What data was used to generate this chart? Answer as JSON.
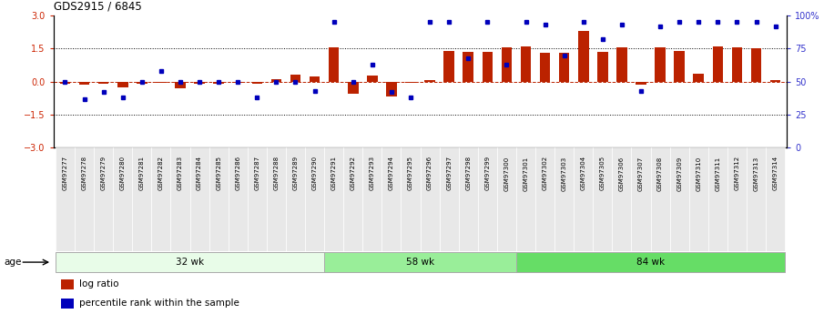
{
  "title": "GDS2915 / 6845",
  "samples": [
    "GSM97277",
    "GSM97278",
    "GSM97279",
    "GSM97280",
    "GSM97281",
    "GSM97282",
    "GSM97283",
    "GSM97284",
    "GSM97285",
    "GSM97286",
    "GSM97287",
    "GSM97288",
    "GSM97289",
    "GSM97290",
    "GSM97291",
    "GSM97292",
    "GSM97293",
    "GSM97294",
    "GSM97295",
    "GSM97296",
    "GSM97297",
    "GSM97298",
    "GSM97299",
    "GSM97300",
    "GSM97301",
    "GSM97302",
    "GSM97303",
    "GSM97304",
    "GSM97305",
    "GSM97306",
    "GSM97307",
    "GSM97308",
    "GSM97309",
    "GSM97310",
    "GSM97311",
    "GSM97312",
    "GSM97313",
    "GSM97314"
  ],
  "log_ratio": [
    -0.1,
    -0.12,
    -0.08,
    -0.25,
    -0.1,
    -0.05,
    -0.3,
    -0.1,
    -0.08,
    -0.05,
    -0.08,
    0.1,
    0.3,
    0.25,
    1.55,
    -0.55,
    0.28,
    -0.68,
    -0.05,
    0.05,
    1.4,
    1.35,
    1.35,
    1.55,
    1.6,
    1.3,
    1.3,
    2.3,
    1.35,
    1.55,
    -0.12,
    1.55,
    1.4,
    0.35,
    1.6,
    1.55,
    1.5,
    0.05
  ],
  "percentile": [
    50,
    37,
    42,
    38,
    50,
    58,
    50,
    50,
    50,
    50,
    38,
    50,
    50,
    43,
    95,
    50,
    63,
    42,
    38,
    95,
    95,
    68,
    95,
    63,
    95,
    93,
    70,
    95,
    82,
    93,
    43,
    92,
    95,
    95,
    95,
    95,
    95,
    92
  ],
  "group_labels": [
    "32 wk",
    "58 wk",
    "84 wk"
  ],
  "group_ends": [
    14,
    24,
    38
  ],
  "group_starts": [
    0,
    14,
    24
  ],
  "group_colors": [
    "#e8fce8",
    "#99ee99",
    "#66dd66"
  ],
  "bar_color": "#bb2200",
  "dot_color": "#0000bb",
  "ylim": [
    -3,
    3
  ],
  "yticks_left": [
    -3,
    -1.5,
    0,
    1.5,
    3
  ],
  "yticks_right_vals": [
    -3,
    -1.5,
    0,
    1.5,
    3
  ],
  "yticks_right_labels": [
    "0",
    "25",
    "50",
    "75",
    "100%"
  ],
  "dotted_lines": [
    -1.5,
    1.5
  ],
  "background_color": "#ffffff",
  "axis_label_color_left": "#cc2200",
  "axis_label_color_right": "#3333cc",
  "legend_items": [
    "log ratio",
    "percentile rank within the sample"
  ],
  "legend_colors": [
    "#bb2200",
    "#0000bb"
  ],
  "age_label": "age",
  "xticklabel_bg": "#e8e8e8"
}
